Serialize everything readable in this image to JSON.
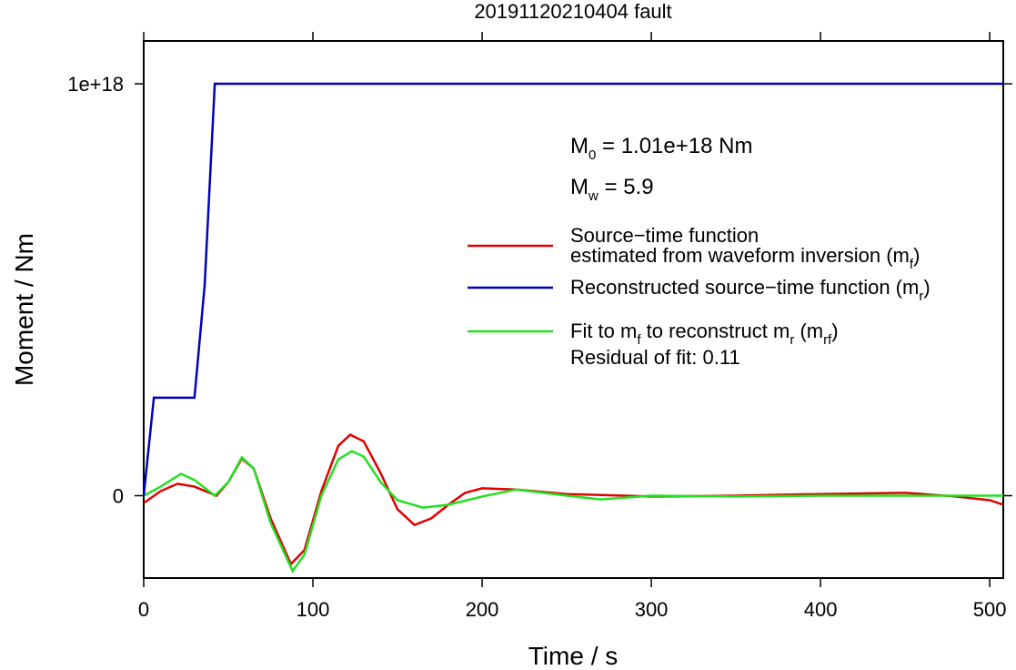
{
  "chart_data": {
    "type": "line",
    "title": "20191120210404 fault",
    "x_label": "Time / s",
    "y_label": "Moment / Nm",
    "xlim": [
      0,
      508
    ],
    "xticks": [
      0,
      100,
      200,
      300,
      400,
      500
    ],
    "ylim": [
      -2e+17,
      1.104e+18
    ],
    "yticks": [
      0,
      {
        "value": 1e+18,
        "label": "1e+18"
      }
    ],
    "annotations": [
      [
        "M",
        "0",
        " = 1.01e+18 Nm"
      ],
      [
        "M",
        "w",
        " = 5.9"
      ],
      [
        "Residual of fit: 0.11"
      ]
    ],
    "series": [
      {
        "name": [
          [
            "Source−time function"
          ],
          [
            "estimated from waveform inversion (m",
            "f",
            ")"
          ]
        ],
        "color": "#e00000",
        "x": [
          0,
          10,
          20,
          30,
          43,
          50,
          58,
          65,
          75,
          87,
          95,
          105,
          115,
          122,
          130,
          140,
          150,
          160,
          170,
          180,
          190,
          200,
          220,
          250,
          300,
          350,
          400,
          450,
          480,
          500,
          508
        ],
        "values": [
          -1.8e+16,
          1.1e+16,
          2.9e+16,
          2.2e+16,
          0,
          3.3e+16,
          9e+16,
          6.6e+16,
          -5.5e+16,
          -1.66e+17,
          -1.32e+17,
          1.1e+16,
          1.21e+17,
          1.48e+17,
          1.32e+17,
          5.5e+16,
          -3.3e+16,
          -7.1e+16,
          -5.5e+16,
          -2.2e+16,
          7000000000000000.0,
          1.8e+16,
          1.5e+16,
          4000000000000000.0,
          -2000000000000000.0,
          0,
          4000000000000000.0,
          7000000000000000.0,
          -2000000000000000.0,
          -1.1e+16,
          -2.2e+16
        ]
      },
      {
        "name": [
          [
            "Reconstructed source−time function (m",
            "r",
            ")"
          ]
        ],
        "color": "#0000c0",
        "x": [
          0,
          6,
          30,
          36,
          42,
          508
        ],
        "values": [
          0,
          2.38e+17,
          2.38e+17,
          5.1e+17,
          1e+18,
          1e+18
        ]
      },
      {
        "name": [
          [
            "Fit to m",
            "f",
            " to reconstruct m",
            "r",
            " (m",
            "rf",
            ")"
          ]
        ],
        "color": "#22e022",
        "x": [
          0,
          10,
          22,
          30,
          42,
          50,
          58,
          65,
          75,
          88,
          95,
          105,
          115,
          123,
          130,
          140,
          150,
          165,
          180,
          200,
          220,
          250,
          270,
          300,
          350,
          400,
          450,
          508
        ],
        "values": [
          0,
          2.2e+16,
          5.3e+16,
          3.8e+16,
          0,
          3.3e+16,
          9.3e+16,
          6.6e+16,
          -6.6e+16,
          -1.83e+17,
          -1.43e+17,
          0,
          8.8e+16,
          1.08e+17,
          9.5e+16,
          3.3e+16,
          -1.1e+16,
          -2.9e+16,
          -2.2e+16,
          -2000000000000000.0,
          1.5e+16,
          0,
          -9000000000000000.0,
          0,
          -2000000000000000.0,
          0,
          0,
          0
        ]
      }
    ]
  }
}
